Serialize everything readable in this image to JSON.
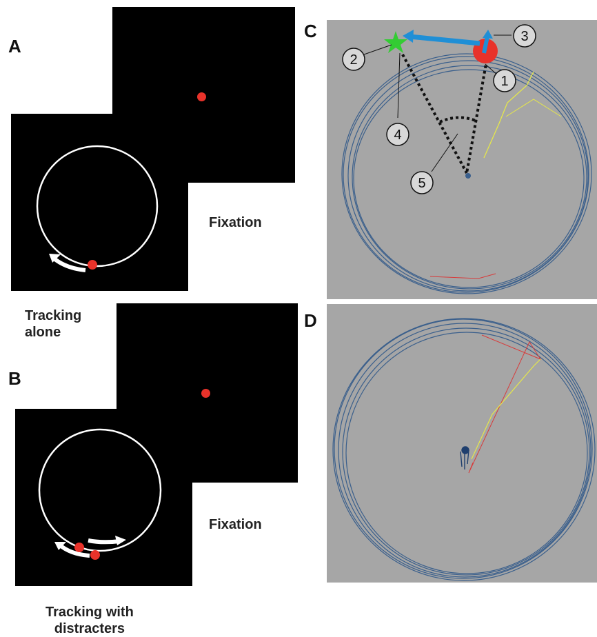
{
  "panels": {
    "A": {
      "letter": "A",
      "fixation_label": "Fixation",
      "tracking_label": [
        "Tracking",
        "alone"
      ]
    },
    "B": {
      "letter": "B",
      "fixation_label": "Fixation",
      "tracking_label": [
        "Tracking with",
        "distracters"
      ]
    },
    "C": {
      "letter": "C",
      "markers": [
        "1",
        "2",
        "3",
        "4",
        "5"
      ]
    },
    "D": {
      "letter": "D"
    }
  },
  "colors": {
    "screen": "#000000",
    "stimulus_dot": "#e8322a",
    "track_circle": "#ffffff",
    "plot_background": "#a6a6a6",
    "eye_trace": "#3a5f8c",
    "hand_trace": "#e6e84a",
    "target_star": "#33cc33",
    "vector_arrow": "#1f8fd6",
    "angle_lines": "#111111",
    "error_trace": "#d83a3a"
  },
  "icons": [
    "target-dot",
    "motion-arrow",
    "star-marker",
    "numbered-circle-marker"
  ]
}
